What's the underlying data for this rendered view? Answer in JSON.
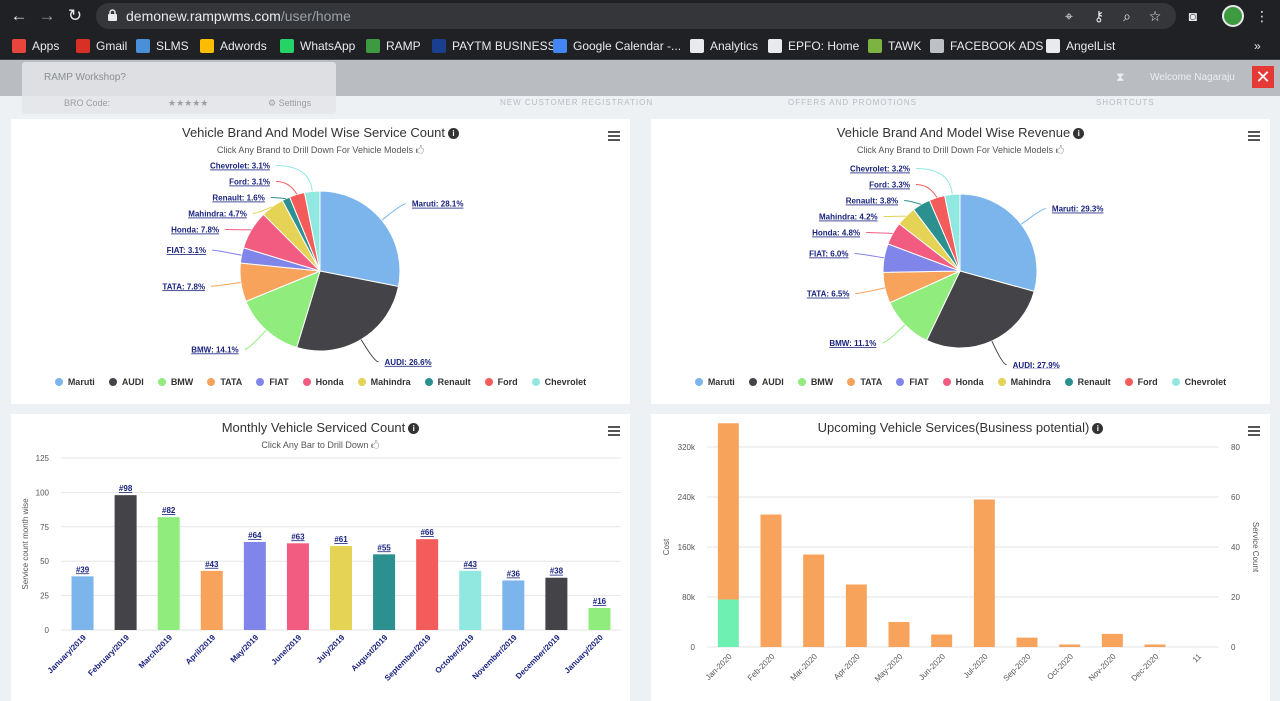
{
  "browser": {
    "url_host": "demonew.rampwms.com",
    "url_path": "/user/home"
  },
  "bookmarks": [
    {
      "label": "Apps",
      "color": "#e8453c"
    },
    {
      "label": "Gmail",
      "color": "#d93025"
    },
    {
      "label": "SLMS",
      "color": "#4a90d9"
    },
    {
      "label": "Adwords",
      "color": "#fbbc04"
    },
    {
      "label": "WhatsApp",
      "color": "#25d366"
    },
    {
      "label": "RAMP",
      "color": "#3d9a41"
    },
    {
      "label": "PAYTM BUSINESS",
      "color": "#1a3f8f"
    },
    {
      "label": "Google Calendar -...",
      "color": "#4285f4"
    },
    {
      "label": "Analytics",
      "color": "#e8eaed"
    },
    {
      "label": "EPFO: Home",
      "color": "#e8eaed"
    },
    {
      "label": "TAWK",
      "color": "#7cb342"
    },
    {
      "label": "FACEBOOK ADS",
      "color": "#bdc1c6"
    },
    {
      "label": "AngelList",
      "color": "#e8eaed"
    }
  ],
  "app": {
    "workshop_title": "RAMP Workshop?",
    "bro_code": "BRO Code:",
    "stars": "★★★★★",
    "settings": "⚙ Settings",
    "welcome": "Welcome  Nagaraju",
    "nav": [
      "NEW CUSTOMER REGISTRATION",
      "OFFERS AND PROMOTIONS",
      "SHORTCUTS"
    ]
  },
  "colors": {
    "Maruti": "#7cb5ec",
    "AUDI": "#434348",
    "BMW": "#90ed7d",
    "TATA": "#f7a35c",
    "FIAT": "#8085e9",
    "Honda": "#f15c80",
    "Mahindra": "#e4d354",
    "Renault": "#2b908f",
    "Ford": "#f45b5b",
    "Chevrolet": "#91e8e1"
  },
  "chart_data": [
    {
      "type": "pie",
      "title": "Vehicle Brand And Model Wise Service Count",
      "subtitle": "Click Any Brand to Drill Down For Vehicle Models 🖒",
      "slices": [
        {
          "name": "Maruti",
          "value": 28.1,
          "label": "Maruti: 28.1%"
        },
        {
          "name": "AUDI",
          "value": 26.6,
          "label": "AUDI: 26.6%"
        },
        {
          "name": "BMW",
          "value": 14.1,
          "label": "BMW: 14.1%"
        },
        {
          "name": "TATA",
          "value": 7.8,
          "label": "TATA: 7.8%"
        },
        {
          "name": "FIAT",
          "value": 3.1,
          "label": "FIAT: 3.1%"
        },
        {
          "name": "Honda",
          "value": 7.8,
          "label": "Honda: 7.8%"
        },
        {
          "name": "Mahindra",
          "value": 4.7,
          "label": "Mahindra: 4.7%"
        },
        {
          "name": "Renault",
          "value": 1.6,
          "label": "Renault: 1.6%"
        },
        {
          "name": "Ford",
          "value": 3.1,
          "label": "Ford: 3.1%"
        },
        {
          "name": "Chevrolet",
          "value": 3.1,
          "label": "Chevrolet: 3.1%"
        }
      ],
      "legend": [
        "Maruti",
        "AUDI",
        "BMW",
        "TATA",
        "FIAT",
        "Honda",
        "Mahindra",
        "Renault",
        "Ford",
        "Chevrolet"
      ],
      "legend_placement": "bottom"
    },
    {
      "type": "pie",
      "title": "Vehicle Brand And Model Wise Revenue",
      "subtitle": "Click Any Brand to Drill Down For Vehicle Models 🖒",
      "slices": [
        {
          "name": "Maruti",
          "value": 29.3,
          "label": "Maruti: 29.3%"
        },
        {
          "name": "AUDI",
          "value": 27.9,
          "label": "AUDI: 27.9%"
        },
        {
          "name": "BMW",
          "value": 11.1,
          "label": "BMW: 11.1%"
        },
        {
          "name": "TATA",
          "value": 6.5,
          "label": "TATA: 6.5%"
        },
        {
          "name": "FIAT",
          "value": 6.0,
          "label": "FIAT: 6.0%"
        },
        {
          "name": "Honda",
          "value": 4.8,
          "label": "Honda: 4.8%"
        },
        {
          "name": "Mahindra",
          "value": 4.2,
          "label": "Mahindra: 4.2%"
        },
        {
          "name": "Renault",
          "value": 3.8,
          "label": "Renault: 3.8%"
        },
        {
          "name": "Ford",
          "value": 3.3,
          "label": "Ford: 3.3%"
        },
        {
          "name": "Chevrolet",
          "value": 3.2,
          "label": "Chevrolet: 3.2%"
        }
      ],
      "legend": [
        "Maruti",
        "AUDI",
        "BMW",
        "TATA",
        "FIAT",
        "Honda",
        "Mahindra",
        "Renault",
        "Ford",
        "Chevrolet"
      ],
      "legend_placement": "bottom"
    },
    {
      "type": "bar",
      "title": "Monthly Vehicle Serviced Count",
      "subtitle": "Click Any Bar to Drill Down 🖒",
      "ylabel": "Service count month wise",
      "ylim": [
        0,
        125
      ],
      "yticks": [
        0,
        25,
        50,
        75,
        100,
        125
      ],
      "grid": true,
      "categories": [
        "January/2019",
        "February/2019",
        "March/2019",
        "April/2019",
        "May/2019",
        "June/2019",
        "July/2019",
        "August/2019",
        "September/2019",
        "October/2019",
        "November/2019",
        "December/2019",
        "January/2020"
      ],
      "values": [
        39,
        98,
        82,
        43,
        64,
        63,
        61,
        55,
        66,
        43,
        36,
        38,
        16
      ],
      "data_labels": [
        "#39",
        "#98",
        "#82",
        "#43",
        "#64",
        "#63",
        "#61",
        "#55",
        "#66",
        "#43",
        "#36",
        "#38",
        "#16"
      ],
      "bar_colors": [
        "#7cb5ec",
        "#434348",
        "#90ed7d",
        "#f7a35c",
        "#8085e9",
        "#f15c80",
        "#e4d354",
        "#2b908f",
        "#f45b5b",
        "#91e8e1",
        "#7cb5ec",
        "#434348",
        "#90ed7d"
      ]
    },
    {
      "type": "bar",
      "title": "Upcoming Vehicle Services(Business potential)",
      "ylabel": "Cost",
      "y2label": "Service Count",
      "ylim": [
        0,
        320000
      ],
      "y2lim": [
        0,
        80
      ],
      "yticks": [
        "0",
        "80k",
        "160k",
        "240k",
        "320k"
      ],
      "y2ticks": [
        "0",
        "20",
        "40",
        "60",
        "80"
      ],
      "grid": true,
      "categories": [
        "Jan-2020",
        "Feb-2020",
        "Mar-2020",
        "Apr-2020",
        "May-2020",
        "Jun-2020",
        "Jul-2020",
        "Sep-2020",
        "Oct-2020",
        "Nov-2020",
        "Dec-2020",
        "11"
      ],
      "series": [
        {
          "values": [
            282000,
            212000,
            148000,
            100000,
            40000,
            20000,
            236000,
            15000,
            4000,
            21000,
            4000,
            0
          ],
          "color": "#f7a35c"
        },
        {
          "values": [
            76000,
            0,
            0,
            0,
            0,
            0,
            0,
            0,
            0,
            0,
            0,
            0
          ],
          "color": "#6df0b1"
        }
      ]
    }
  ]
}
